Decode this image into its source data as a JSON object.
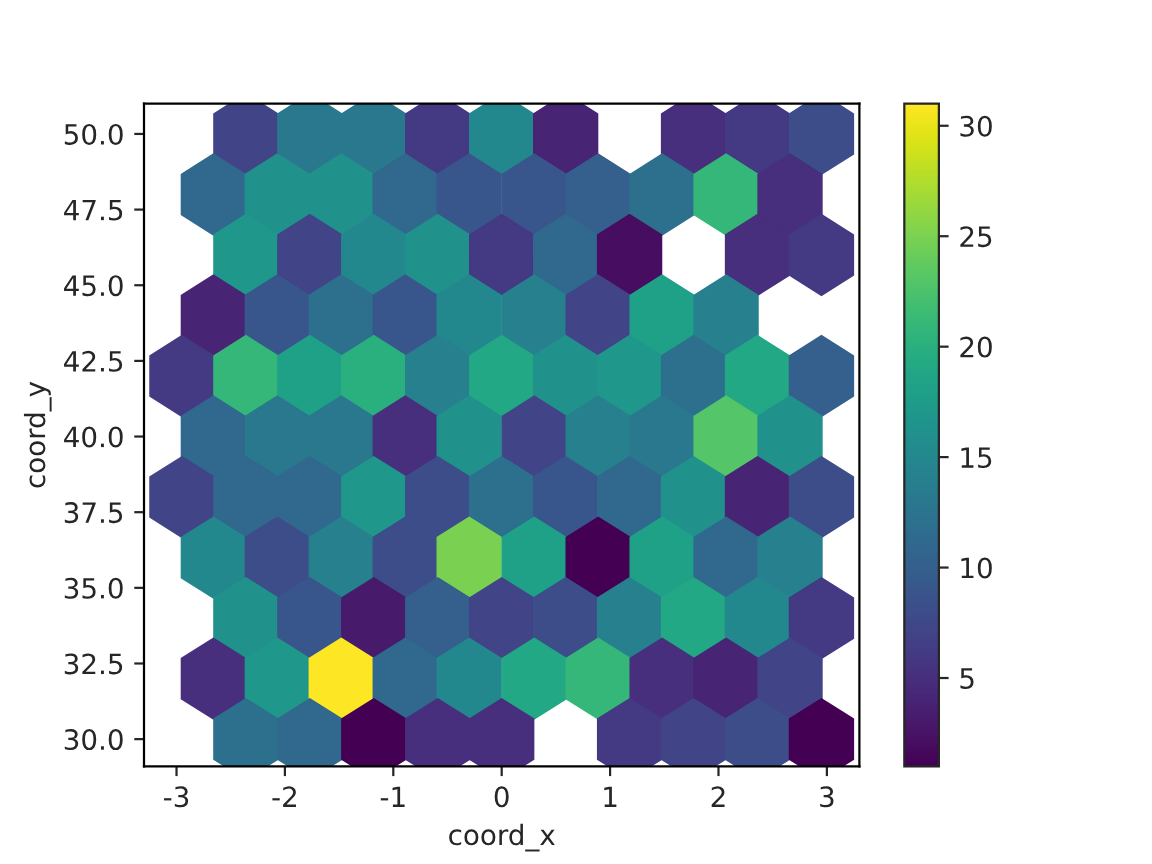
{
  "chart_data": {
    "type": "scatter",
    "xlabel": "coord_x",
    "ylabel": "coord_y",
    "x": [
      -2.36,
      -1.77,
      -1.18,
      -0.59,
      0,
      0.59,
      1.77,
      2.36,
      2.95,
      -2.66,
      -2.07,
      -1.48,
      -0.89,
      -0.3,
      0.3,
      0.89,
      1.48,
      2.07,
      2.66,
      -2.36,
      -1.77,
      -1.18,
      -0.59,
      0,
      0.59,
      1.18,
      2.36,
      2.95,
      -2.66,
      -2.07,
      -1.48,
      -0.89,
      -0.3,
      0.3,
      0.89,
      1.48,
      2.07,
      -2.95,
      -2.36,
      -1.77,
      -1.18,
      -0.59,
      0,
      0.59,
      1.18,
      1.77,
      2.36,
      2.95,
      -2.66,
      -2.07,
      -1.48,
      -0.89,
      -0.3,
      0.3,
      0.89,
      1.48,
      2.07,
      2.66,
      -2.95,
      -2.36,
      -1.77,
      -1.18,
      -0.59,
      0,
      0.59,
      1.18,
      1.77,
      2.36,
      2.95,
      -2.66,
      -2.07,
      -1.48,
      -0.89,
      -0.3,
      0.3,
      0.89,
      1.48,
      2.07,
      2.66,
      -2.36,
      -1.77,
      -1.18,
      -0.59,
      0,
      0.59,
      1.18,
      1.77,
      2.36,
      2.95,
      -2.66,
      -2.07,
      -1.48,
      -0.89,
      -0.3,
      0.3,
      0.89,
      1.48,
      2.07,
      2.66,
      -2.36,
      -1.77,
      -1.18,
      -0.59,
      0,
      1.18,
      1.77,
      2.36,
      2.95
    ],
    "values": [
      50,
      50,
      50,
      50,
      50,
      50,
      50,
      50,
      50,
      48,
      48,
      48,
      48,
      48,
      48,
      48,
      48,
      48,
      48,
      46,
      46,
      46,
      46,
      46,
      46,
      46,
      46,
      46,
      44,
      44,
      44,
      44,
      44,
      44,
      44,
      44,
      44,
      42,
      42,
      42,
      42,
      42,
      42,
      42,
      42,
      42,
      42,
      42,
      40,
      40,
      40,
      40,
      40,
      40,
      40,
      40,
      40,
      40,
      38,
      38,
      38,
      38,
      38,
      38,
      38,
      38,
      38,
      38,
      38,
      36,
      36,
      36,
      36,
      36,
      36,
      36,
      36,
      36,
      36,
      34,
      34,
      34,
      34,
      34,
      34,
      34,
      34,
      34,
      34,
      32,
      32,
      32,
      32,
      32,
      32,
      32,
      32,
      32,
      32,
      30,
      30,
      30,
      30,
      30,
      30,
      30,
      30,
      30
    ],
    "cvalues": [
      7,
      13,
      13,
      6,
      15,
      4,
      5,
      6,
      8,
      11,
      16,
      16,
      11,
      9,
      9,
      10,
      12,
      21,
      5,
      17,
      7,
      15,
      16,
      6,
      11,
      2,
      5,
      6,
      4,
      9,
      12,
      9,
      15,
      14,
      7,
      18,
      14,
      6,
      21,
      18,
      20,
      14,
      19,
      16,
      17,
      12,
      19,
      10,
      11,
      13,
      13,
      5,
      16,
      7,
      14,
      13,
      23,
      16,
      7,
      11,
      11,
      17,
      8,
      12,
      9,
      11,
      16,
      4,
      8,
      15,
      8,
      14,
      8,
      25,
      18,
      1,
      18,
      11,
      14,
      16,
      9,
      3,
      10,
      7,
      8,
      14,
      19,
      15,
      6,
      5,
      17,
      31,
      11,
      15,
      19,
      21,
      5,
      4,
      7,
      12,
      11,
      1,
      5,
      5,
      6,
      7,
      8,
      1
    ],
    "xlim": [
      -3.3,
      3.3
    ],
    "ylim": [
      29.1,
      51.0
    ],
    "xticks": [
      -3,
      -2,
      -1,
      0,
      1,
      2,
      3
    ],
    "yticks": [
      {
        "value": 30,
        "label": "30.0"
      },
      {
        "value": 32.5,
        "label": "32.5"
      },
      {
        "value": 35,
        "label": "35.0"
      },
      {
        "value": 37.5,
        "label": "37.5"
      },
      {
        "value": 40,
        "label": "40.0"
      },
      {
        "value": 42.5,
        "label": "42.5"
      },
      {
        "value": 45,
        "label": "45.0"
      },
      {
        "value": 47.5,
        "label": "47.5"
      },
      {
        "value": 50,
        "label": "50.0"
      }
    ],
    "clim": [
      1,
      31
    ],
    "cticks": [
      5,
      10,
      15,
      20,
      25,
      30
    ],
    "grid": false
  }
}
